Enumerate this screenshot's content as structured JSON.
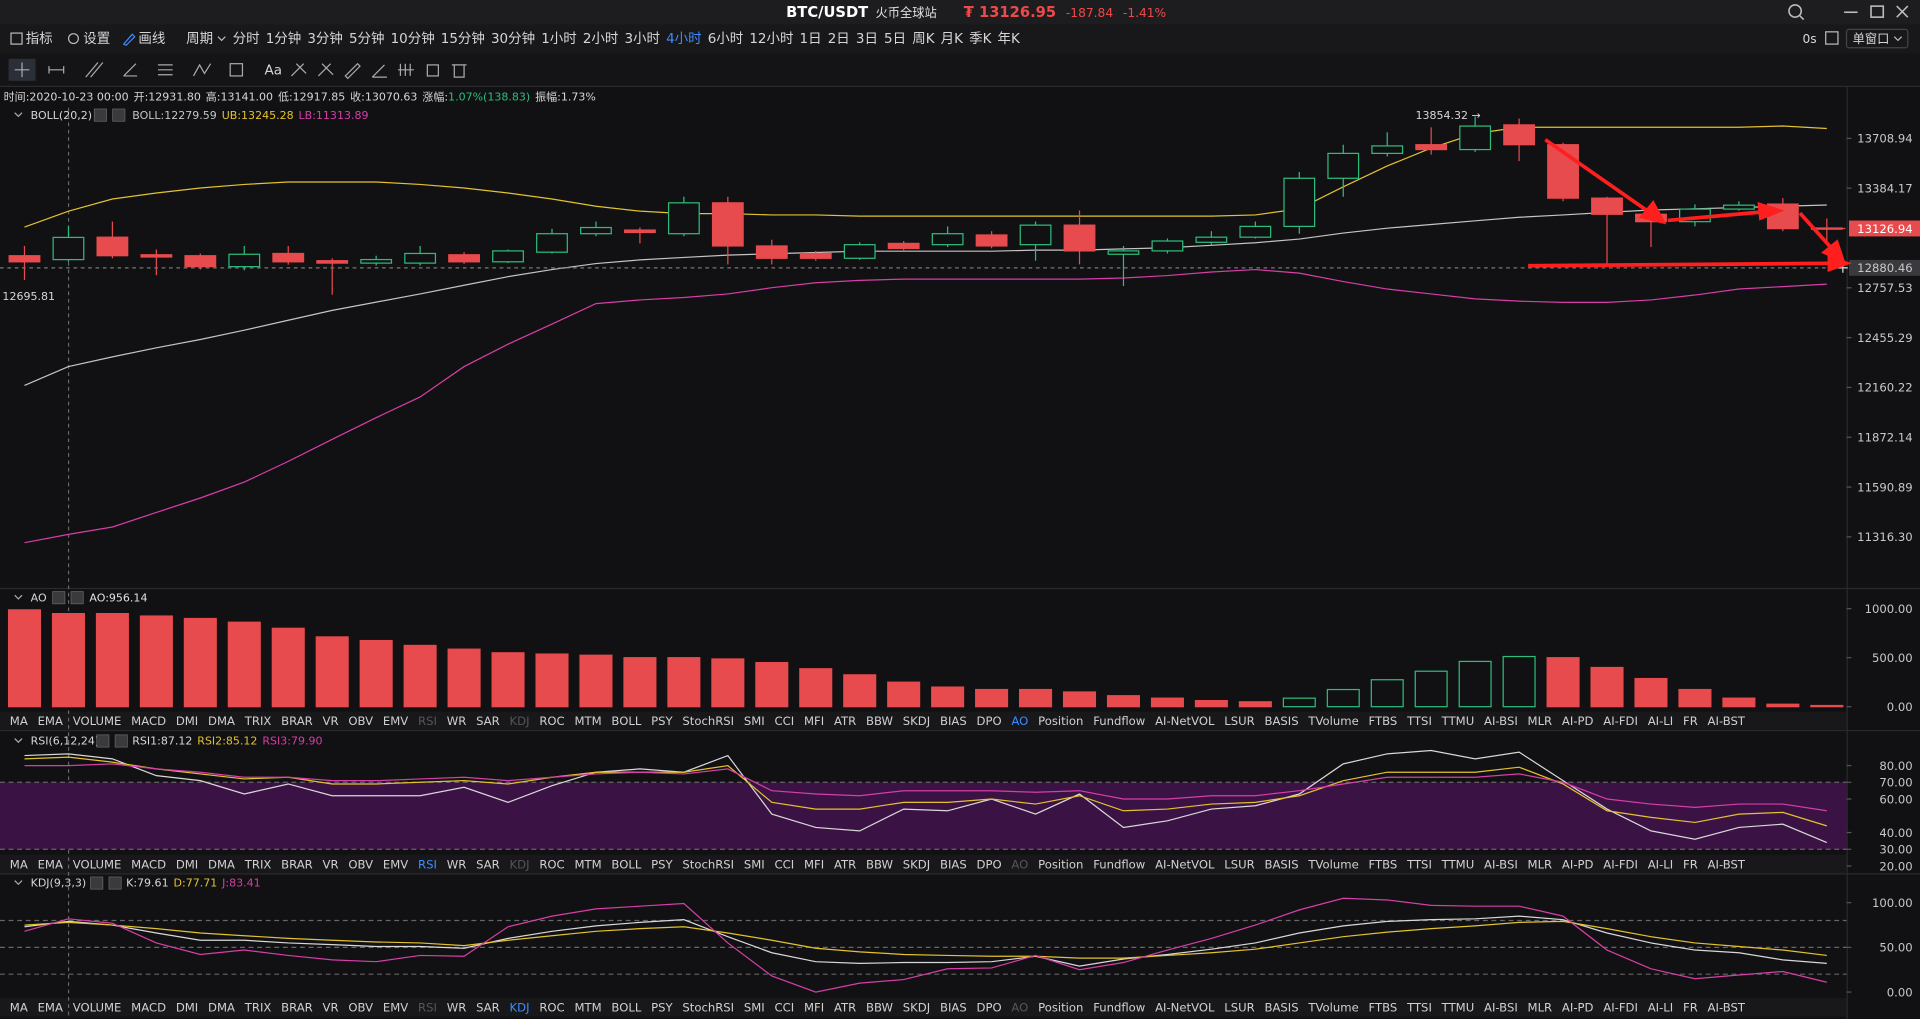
{
  "header": {
    "symbol": "BTC/USDT",
    "exchange": "火币全球站",
    "price": "₮ 13126.95",
    "change": "-187.84",
    "change_pct": "-1.41%"
  },
  "toolbar": {
    "buttons": [
      "指标",
      "设置",
      "画线"
    ],
    "active_button": "画线",
    "period_label": "周期",
    "periods": [
      "分时",
      "1分钟",
      "3分钟",
      "5分钟",
      "10分钟",
      "15分钟",
      "30分钟",
      "1小时",
      "2小时",
      "3小时",
      "4小时",
      "6小时",
      "12小时",
      "1日",
      "2日",
      "3日",
      "5日",
      "周K",
      "月K",
      "季K",
      "年K"
    ],
    "active_period": "4小时",
    "countdown": "0s",
    "window_mode": "单窗口",
    "font_tool": "Aa"
  },
  "info_bar": {
    "time": "时间:2020-10-23 00:00",
    "open": "开:12931.80",
    "high": "高:13141.00",
    "low": "低:12917.85",
    "close": "收:13070.63",
    "change_label": "涨幅:",
    "change": "1.07%(138.83)",
    "amplitude": "振幅:1.73%"
  },
  "main_chart": {
    "type": "candlestick",
    "indicator": "BOLL(20,2)",
    "log_scale": true,
    "ylim": [
      11055,
      13912
    ],
    "yticks": [
      13708.94,
      13384.17,
      12757.53,
      12455.29,
      12160.22,
      11872.14,
      11590.89,
      {
        "value": 11316.3,
        "label": "11316.30"
      }
    ],
    "last_price": 13126.94,
    "crosshair_price": 12880.46,
    "high_marker": "13854.32 →",
    "low_marker": "12695.81",
    "up_color": "#2dbd7b",
    "down_color": "#e84b4d",
    "open": [
      12956,
      12931.8,
      13072,
      12962,
      12956,
      12888,
      12970,
      12925,
      12910,
      12910,
      12962,
      12918,
      12978,
      13094,
      13117,
      13094,
      13290,
      13017,
      12970,
      12940,
      13033,
      13025,
      13086,
      13025,
      13148,
      12965,
      12986,
      13040,
      13072,
      13140,
      13448,
      13610,
      13667,
      13635,
      13798,
      13667,
      13320,
      13217,
      13170,
      13250,
      13282,
      13130
    ],
    "high": [
      13017,
      13141,
      13171,
      12995,
      12970,
      13017,
      13017,
      12940,
      12956,
      13017,
      12978,
      12995,
      13125,
      13171,
      13133,
      13329,
      13329,
      13056,
      12986,
      13040,
      13048,
      13140,
      13110,
      13171,
      13242,
      13017,
      13064,
      13110,
      13171,
      13489,
      13667,
      13749,
      13782,
      13854.32,
      13840,
      13680,
      13329,
      13250,
      13280,
      13300,
      13320,
      13190
    ],
    "low": [
      12805,
      12917.85,
      12940,
      12835,
      12870,
      12865,
      12900,
      12715,
      12895,
      12895,
      12905,
      12910,
      12970,
      13078,
      13033,
      13078,
      12902,
      12902,
      12925,
      12930,
      12990,
      13010,
      13002,
      12925,
      12902,
      12768,
      12970,
      13025,
      13064,
      13094,
      13329,
      13590,
      13602,
      13620,
      13560,
      13300,
      12900,
      13010,
      13140,
      13240,
      13110,
      13020
    ],
    "close": [
      12918,
      13070.63,
      12956,
      12948,
      12888,
      12965,
      12918,
      12910,
      12932,
      12970,
      12918,
      12986,
      13094,
      13133,
      13102,
      13290,
      13017,
      12940,
      12940,
      13025,
      13002,
      13094,
      13017,
      13148,
      12986,
      12986,
      13048,
      13072,
      13140,
      13448,
      13610,
      13659,
      13635,
      13790,
      13667,
      13320,
      13217,
      13170,
      13250,
      13275,
      13126,
      13126.94
    ],
    "series": [
      {
        "label": "BOLL:12279.59",
        "color": "#c4c4c4",
        "values": [
          12172,
          12283,
          12340,
          12394,
          12444,
          12500,
          12560,
          12620,
          12670,
          12720,
          12773,
          12826,
          12870,
          12907,
          12930,
          12945,
          12960,
          12968,
          12976,
          12984,
          12984,
          12984,
          12984,
          12991,
          12991,
          12999,
          13006,
          13021,
          13037,
          13060,
          13098,
          13129,
          13152,
          13175,
          13198,
          13213,
          13229,
          13244,
          13252,
          13260,
          13268,
          13276
        ]
      },
      {
        "label": "UB:13245.28",
        "color": "#e3c12f",
        "values": [
          13136,
          13237,
          13314,
          13353,
          13385,
          13408,
          13424,
          13424,
          13424,
          13408,
          13385,
          13353,
          13314,
          13268,
          13237,
          13221,
          13221,
          13213,
          13213,
          13205,
          13205,
          13205,
          13205,
          13205,
          13205,
          13205,
          13205,
          13205,
          13213,
          13252,
          13393,
          13528,
          13645,
          13740,
          13782,
          13782,
          13782,
          13782,
          13782,
          13782,
          13790,
          13774
        ]
      },
      {
        "label": "LB:11313.89",
        "color": "#d63ea8",
        "values": [
          11285,
          11330,
          11370,
          11450,
          11530,
          11619,
          11735,
          11860,
          11985,
          12105,
          12283,
          12416,
          12537,
          12661,
          12683,
          12698,
          12720,
          12758,
          12788,
          12803,
          12811,
          12811,
          12811,
          12811,
          12811,
          12818,
          12833,
          12855,
          12870,
          12848,
          12796,
          12750,
          12720,
          12690,
          12676,
          12668,
          12668,
          12683,
          12713,
          12750,
          12765,
          12780
        ]
      }
    ]
  },
  "ao": {
    "type": "bar",
    "indicator": "AO",
    "ylim": [
      -37.5,
      1187.5
    ],
    "yticks": [
      {
        "value": 1000,
        "label": "1000.00"
      },
      {
        "value": 500,
        "label": "500.00"
      },
      {
        "value": 0,
        "label": "0.00"
      }
    ],
    "up_color": "#2dbd7b",
    "down_color": "#e84b4d",
    "series": [
      {
        "label": "AO:956.14",
        "color": "#e0e0e0",
        "values": [
          988,
          950,
          950,
          925,
          900,
          862,
          800,
          712,
          675,
          625,
          587,
          550,
          537,
          525,
          500,
          500,
          487,
          450,
          387,
          325,
          250,
          200,
          175,
          175,
          150,
          112,
          87,
          62,
          50,
          87,
          175,
          275,
          362,
          462,
          512,
          500,
          400,
          287,
          175,
          87,
          25,
          12
        ]
      }
    ]
  },
  "rsi": {
    "type": "line",
    "indicator": "RSI(6,12,24)",
    "ylim": [
      16.4,
      99.8
    ],
    "yticks": [
      {
        "value": 80,
        "label": "80.00"
      },
      {
        "value": 70,
        "label": "70.00"
      },
      {
        "value": 60,
        "label": "60.00"
      },
      {
        "value": 40,
        "label": "40.00"
      },
      {
        "value": 30,
        "label": "30.00"
      },
      {
        "value": 20,
        "label": "20.00"
      }
    ],
    "band": [
      30,
      70
    ],
    "band_color": "#3b1244",
    "levels": [
      30,
      70
    ],
    "series": [
      {
        "label": "RSI1:87.12",
        "color": "#d8d8d8",
        "values": [
          86,
          87,
          84,
          74,
          71,
          63,
          69,
          62,
          62,
          62,
          67,
          58,
          68,
          76,
          78,
          76,
          86,
          51,
          43,
          41,
          54,
          53,
          60,
          51,
          63,
          43,
          47,
          54,
          56,
          63,
          81,
          87,
          89,
          84,
          88,
          71,
          54,
          41,
          36,
          43,
          45,
          34
        ]
      },
      {
        "label": "RSI2:85.12",
        "color": "#e3c12f",
        "values": [
          84,
          85,
          82,
          78,
          75,
          72,
          73,
          69,
          69,
          70,
          71,
          69,
          73,
          76,
          76,
          76,
          80,
          58,
          54,
          54,
          58,
          58,
          60,
          57,
          62,
          53,
          54,
          57,
          58,
          62,
          71,
          76,
          76,
          76,
          79,
          69,
          53,
          49,
          46,
          51,
          52,
          44
        ]
      },
      {
        "label": "RSI3:79.90",
        "color": "#d63ea8",
        "values": [
          80,
          80,
          81,
          78,
          76,
          73,
          73,
          71,
          71,
          72,
          73,
          71,
          73,
          75,
          76,
          75,
          78,
          65,
          63,
          62,
          65,
          65,
          65,
          64,
          65,
          60,
          60,
          62,
          62,
          65,
          69,
          73,
          73,
          73,
          75,
          70,
          60,
          57,
          55,
          57,
          57,
          53
        ]
      }
    ]
  },
  "kdj": {
    "type": "line",
    "indicator": "KDJ(9,3,3)",
    "ylim": [
      -27.4,
      128.8
    ],
    "yticks": [
      {
        "value": 100,
        "label": "100.00"
      },
      {
        "value": 50,
        "label": "50.00"
      },
      {
        "value": 0,
        "label": "0.00"
      }
    ],
    "levels": [
      20,
      50,
      80
    ],
    "series": [
      {
        "label": "K:79.61",
        "color": "#d8d8d8",
        "values": [
          73,
          79,
          75,
          66,
          58,
          58,
          55,
          53,
          51,
          51,
          49,
          60,
          68,
          74,
          78,
          81,
          62,
          44,
          34,
          32,
          33,
          33,
          34,
          40,
          29,
          37,
          42,
          48,
          55,
          66,
          74,
          79,
          81,
          82,
          85,
          81,
          66,
          55,
          47,
          44,
          36,
          32
        ]
      },
      {
        "label": "D:77.71",
        "color": "#e3c12f",
        "values": [
          75,
          78,
          75,
          71,
          66,
          63,
          60,
          58,
          56,
          55,
          52,
          58,
          63,
          68,
          71,
          73,
          66,
          58,
          49,
          45,
          42,
          41,
          40,
          40,
          38,
          38,
          41,
          44,
          48,
          55,
          62,
          67,
          71,
          74,
          78,
          79,
          71,
          62,
          55,
          51,
          47,
          41
        ]
      },
      {
        "label": "J:83.41",
        "color": "#d63ea8",
        "values": [
          68,
          82,
          77,
          55,
          42,
          47,
          41,
          36,
          34,
          41,
          40,
          73,
          85,
          93,
          96,
          99,
          55,
          18,
          0,
          10,
          14,
          26,
          27,
          41,
          25,
          33,
          47,
          60,
          75,
          92,
          105,
          103,
          97,
          96,
          96,
          85,
          47,
          26,
          15,
          19,
          23,
          11
        ]
      }
    ]
  },
  "indicator_tabs": {
    "names": [
      "MA",
      "EMA",
      "VOLUME",
      "MACD",
      "DMI",
      "DMA",
      "TRIX",
      "BRAR",
      "VR",
      "OBV",
      "EMV",
      "RSI",
      "WR",
      "SAR",
      "KDJ",
      "ROC",
      "MTM",
      "BOLL",
      "PSY",
      "StochRSI",
      "SMI",
      "CCI",
      "MFI",
      "ATR",
      "BBW",
      "SKDJ",
      "BIAS",
      "DPO",
      "AO",
      "Position",
      "Fundflow",
      "AI-NetVOL",
      "LSUR",
      "BASIS",
      "TVolume",
      "FTBS",
      "TTSI",
      "TTMU",
      "AI-BSI",
      "MLR",
      "AI-PD",
      "AI-FDI",
      "AI-LI",
      "FR",
      "AI-BST"
    ],
    "rows": [
      {
        "active": "AO",
        "disabled": [
          "RSI",
          "KDJ"
        ]
      },
      {
        "active": "RSI",
        "disabled": [
          "AO",
          "KDJ"
        ]
      },
      {
        "active": "KDJ",
        "disabled": [
          "RSI",
          "AO"
        ]
      }
    ]
  }
}
